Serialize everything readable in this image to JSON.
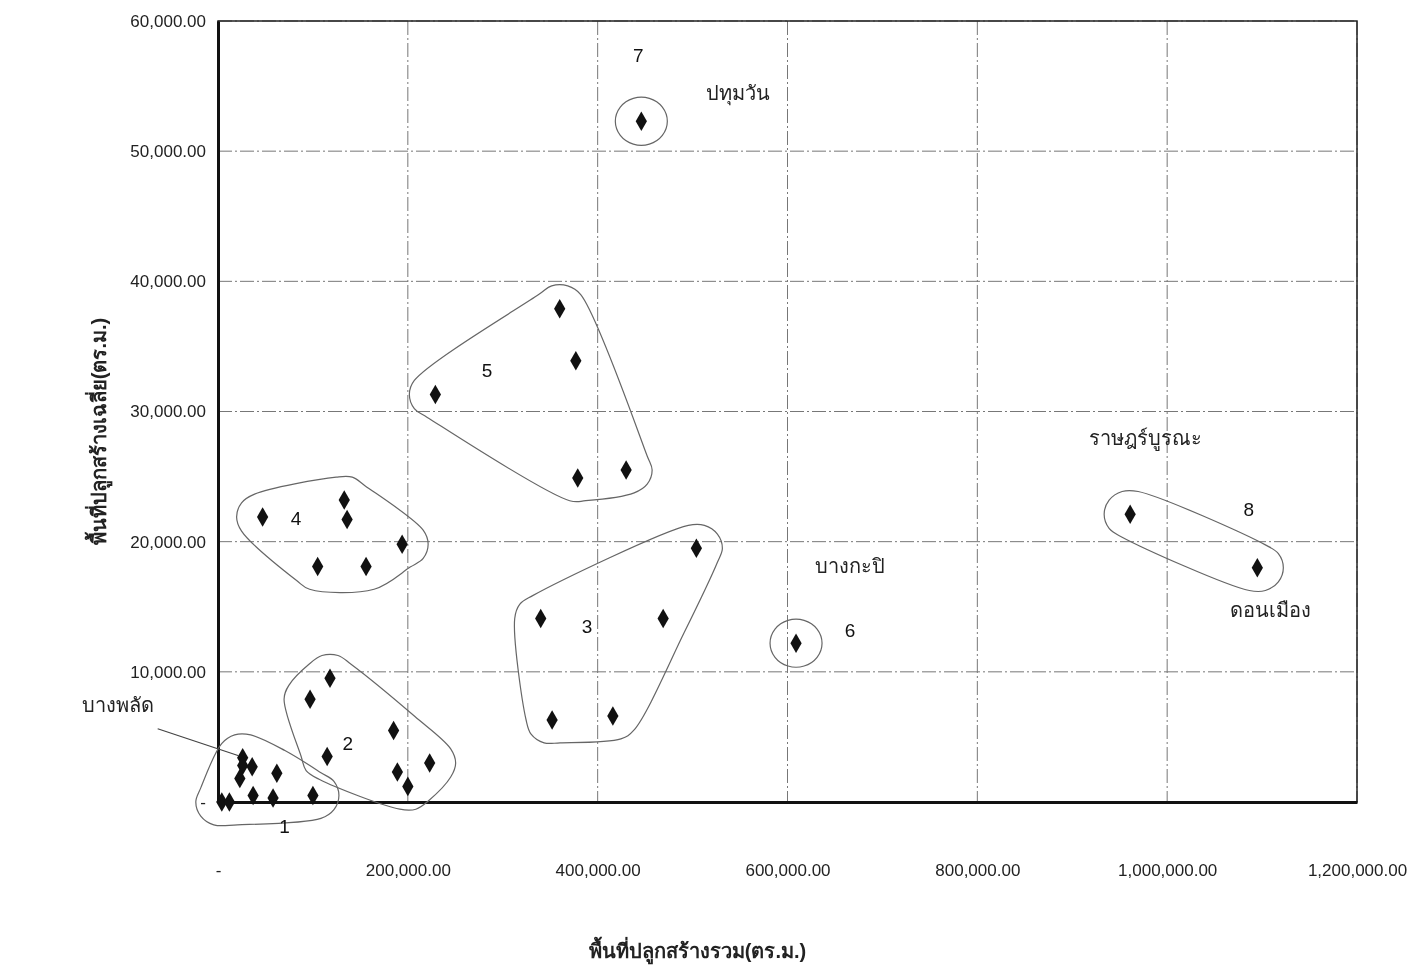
{
  "chart_data": {
    "type": "scatter",
    "xlabel": "พื้นที่ปลูกสร้างรวม(ตร.ม.)",
    "ylabel": "พื้นที่ปลูกสร้างเฉลี่ย(ตร.ม.)",
    "xlim": [
      0,
      1200000
    ],
    "ylim": [
      0,
      60000
    ],
    "xticks": [
      {
        "value": 0,
        "label": "-"
      },
      {
        "value": 200000,
        "label": "200,000.00"
      },
      {
        "value": 400000,
        "label": "400,000.00"
      },
      {
        "value": 600000,
        "label": "600,000.00"
      },
      {
        "value": 800000,
        "label": "800,000.00"
      },
      {
        "value": 1000000,
        "label": "1,000,000.00"
      },
      {
        "value": 1200000,
        "label": "1,200,000.00"
      }
    ],
    "yticks": [
      {
        "value": 0,
        "label": "-"
      },
      {
        "value": 10000,
        "label": "10,000.00"
      },
      {
        "value": 20000,
        "label": "20,000.00"
      },
      {
        "value": 30000,
        "label": "30,000.00"
      },
      {
        "value": 40000,
        "label": "40,000.00"
      },
      {
        "value": 50000,
        "label": "50,000.00"
      },
      {
        "value": 60000,
        "label": "60,000.00"
      }
    ],
    "grid": true,
    "marker": "diamond",
    "series": [
      {
        "name": "1",
        "color": "#111111",
        "x": [
          4000,
          12000,
          26000,
          36000,
          26000,
          23000,
          62000,
          37000,
          58000,
          100000
        ],
        "values": [
          0,
          0,
          3400,
          2700,
          2800,
          1800,
          2200,
          500,
          300,
          500
        ]
      },
      {
        "name": "2",
        "color": "#111111",
        "x": [
          118000,
          97000,
          185000,
          115000,
          189000,
          223000,
          200000
        ],
        "values": [
          9500,
          7900,
          5500,
          3500,
          2300,
          3000,
          1200
        ]
      },
      {
        "name": "3",
        "color": "#111111",
        "x": [
          504000,
          340000,
          469000,
          352000,
          416000
        ],
        "values": [
          19500,
          14100,
          14100,
          6300,
          6600
        ]
      },
      {
        "name": "4",
        "color": "#111111",
        "x": [
          47000,
          133000,
          136000,
          194000,
          105000,
          156000
        ],
        "values": [
          21900,
          23200,
          21700,
          19800,
          18100,
          18100
        ]
      },
      {
        "name": "5",
        "color": "#111111",
        "x": [
          360000,
          377000,
          229000,
          430000,
          379000
        ],
        "values": [
          37900,
          33900,
          31300,
          25500,
          24900
        ]
      },
      {
        "name": "6",
        "color": "#111111",
        "x": [
          609000
        ],
        "values": [
          12200
        ]
      },
      {
        "name": "7",
        "color": "#111111",
        "x": [
          446000
        ],
        "values": [
          52300
        ]
      },
      {
        "name": "8",
        "color": "#111111",
        "x": [
          961000,
          1095000
        ],
        "values": [
          22100,
          18000
        ]
      }
    ],
    "annotations": [
      {
        "text": "บางพลัด",
        "x": 26000,
        "y": 3400
      },
      "ปทุมวัน",
      "บางกะปิ",
      "ราษฎร์บูรณะ",
      "ดอนเมือง"
    ]
  }
}
